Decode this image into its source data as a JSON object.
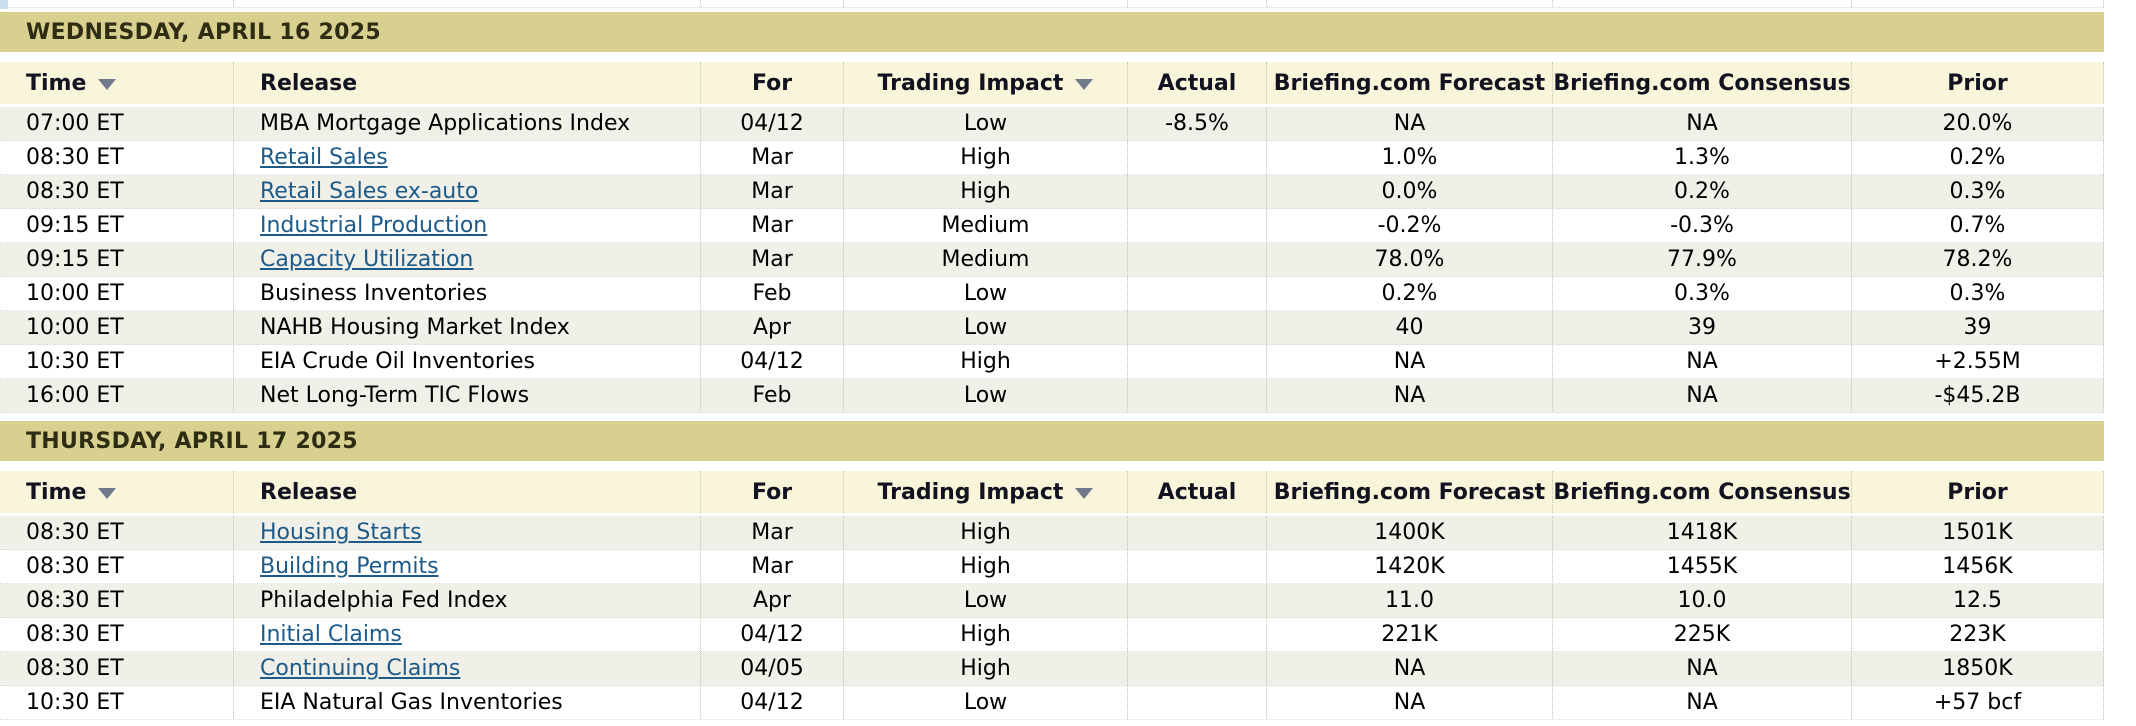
{
  "colors": {
    "date_band_bg": "#d8d08e",
    "header_row_bg": "#f9f5da",
    "shaded_row_bg": "#f0efe8",
    "link_color": "#1c5a8a",
    "page_edge_fragment": "#c9ddee"
  },
  "table": {
    "columns": [
      {
        "key": "time",
        "label": "Time",
        "sortable": true,
        "icon": "sort-down-icon"
      },
      {
        "key": "release",
        "label": "Release",
        "sortable": false
      },
      {
        "key": "for",
        "label": "For",
        "sortable": false
      },
      {
        "key": "impact",
        "label": "Trading Impact",
        "sortable": true,
        "icon": "sort-down-icon"
      },
      {
        "key": "actual",
        "label": "Actual",
        "sortable": false
      },
      {
        "key": "forecast",
        "label": "Briefing.com Forecast",
        "sortable": false
      },
      {
        "key": "consensus",
        "label": "Briefing.com Consensus",
        "sortable": false
      },
      {
        "key": "prior",
        "label": "Prior",
        "sortable": false
      }
    ],
    "sections": [
      {
        "date_header": "WEDNESDAY, APRIL 16 2025",
        "rows": [
          {
            "time": "07:00 ET",
            "release": "MBA Mortgage Applications Index",
            "link": false,
            "for": "04/12",
            "impact": "Low",
            "actual": "-8.5%",
            "forecast": "NA",
            "consensus": "NA",
            "prior": "20.0%"
          },
          {
            "time": "08:30 ET",
            "release": "Retail Sales",
            "link": true,
            "for": "Mar",
            "impact": "High",
            "actual": "",
            "forecast": "1.0%",
            "consensus": "1.3%",
            "prior": "0.2%"
          },
          {
            "time": "08:30 ET",
            "release": "Retail Sales ex-auto",
            "link": true,
            "for": "Mar",
            "impact": "High",
            "actual": "",
            "forecast": "0.0%",
            "consensus": "0.2%",
            "prior": "0.3%"
          },
          {
            "time": "09:15 ET",
            "release": "Industrial Production",
            "link": true,
            "for": "Mar",
            "impact": "Medium",
            "actual": "",
            "forecast": "-0.2%",
            "consensus": "-0.3%",
            "prior": "0.7%"
          },
          {
            "time": "09:15 ET",
            "release": "Capacity Utilization",
            "link": true,
            "for": "Mar",
            "impact": "Medium",
            "actual": "",
            "forecast": "78.0%",
            "consensus": "77.9%",
            "prior": "78.2%"
          },
          {
            "time": "10:00 ET",
            "release": "Business Inventories",
            "link": false,
            "for": "Feb",
            "impact": "Low",
            "actual": "",
            "forecast": "0.2%",
            "consensus": "0.3%",
            "prior": "0.3%"
          },
          {
            "time": "10:00 ET",
            "release": "NAHB Housing Market Index",
            "link": false,
            "for": "Apr",
            "impact": "Low",
            "actual": "",
            "forecast": "40",
            "consensus": "39",
            "prior": "39"
          },
          {
            "time": "10:30 ET",
            "release": "EIA Crude Oil Inventories",
            "link": false,
            "for": "04/12",
            "impact": "High",
            "actual": "",
            "forecast": "NA",
            "consensus": "NA",
            "prior": "+2.55M"
          },
          {
            "time": "16:00 ET",
            "release": "Net Long-Term TIC Flows",
            "link": false,
            "for": "Feb",
            "impact": "Low",
            "actual": "",
            "forecast": "NA",
            "consensus": "NA",
            "prior": "-$45.2B"
          }
        ]
      },
      {
        "date_header": "THURSDAY, APRIL 17 2025",
        "rows": [
          {
            "time": "08:30 ET",
            "release": "Housing Starts",
            "link": true,
            "for": "Mar",
            "impact": "High",
            "actual": "",
            "forecast": "1400K",
            "consensus": "1418K",
            "prior": "1501K"
          },
          {
            "time": "08:30 ET",
            "release": "Building Permits",
            "link": true,
            "for": "Mar",
            "impact": "High",
            "actual": "",
            "forecast": "1420K",
            "consensus": "1455K",
            "prior": "1456K"
          },
          {
            "time": "08:30 ET",
            "release": "Philadelphia Fed Index",
            "link": false,
            "for": "Apr",
            "impact": "Low",
            "actual": "",
            "forecast": "11.0",
            "consensus": "10.0",
            "prior": "12.5"
          },
          {
            "time": "08:30 ET",
            "release": "Initial Claims",
            "link": true,
            "for": "04/12",
            "impact": "High",
            "actual": "",
            "forecast": "221K",
            "consensus": "225K",
            "prior": "223K"
          },
          {
            "time": "08:30 ET",
            "release": "Continuing Claims",
            "link": true,
            "for": "04/05",
            "impact": "High",
            "actual": "",
            "forecast": "NA",
            "consensus": "NA",
            "prior": "1850K"
          },
          {
            "time": "10:30 ET",
            "release": "EIA Natural Gas Inventories",
            "link": false,
            "for": "04/12",
            "impact": "Low",
            "actual": "",
            "forecast": "NA",
            "consensus": "NA",
            "prior": "+57 bcf"
          }
        ]
      }
    ]
  }
}
